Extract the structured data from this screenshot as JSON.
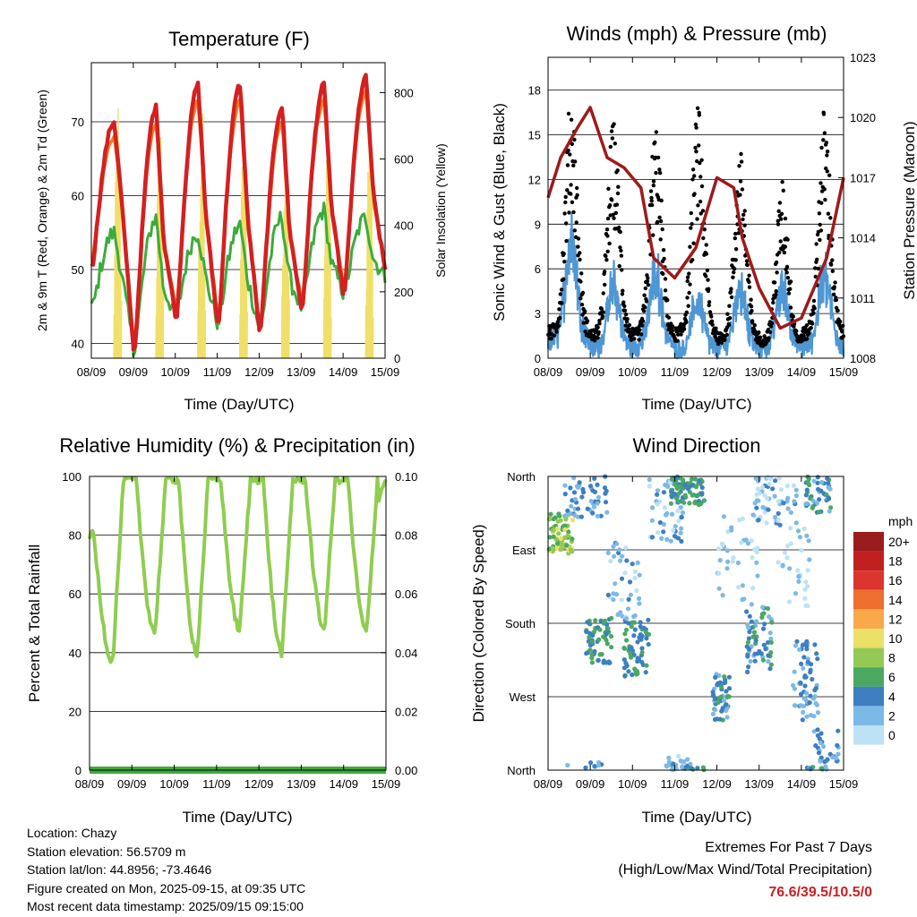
{
  "chart_data": [
    {
      "type": "line",
      "title": "Temperature (F)",
      "xlabel": "Time (Day/UTC)",
      "ylabel": "2m & 9m T (Red, Orange) & 2m Td (Green)",
      "ylabel_right": "Solar Insolation (Yellow)",
      "x_ticks": [
        "08/09",
        "09/09",
        "10/09",
        "11/09",
        "12/09",
        "13/09",
        "14/09",
        "15/09"
      ],
      "y_ticks": [
        40,
        50,
        60,
        70
      ],
      "ylim": [
        38,
        78
      ],
      "y_right_ticks": [
        0,
        200,
        400,
        600,
        800
      ],
      "y_right_lim": [
        0,
        890
      ],
      "grid": true,
      "series": [
        {
          "name": "2m T",
          "color": "#d42020",
          "daily_max": [
            70,
            72,
            75,
            75,
            72,
            75,
            76
          ],
          "daily_min": [
            51,
            39.5,
            44,
            43,
            42,
            45,
            47
          ],
          "end": 50
        },
        {
          "name": "9m T",
          "color": "#f07a20",
          "daily_max": [
            68,
            70,
            73,
            73,
            70,
            73,
            74
          ],
          "daily_min": [
            52,
            40.5,
            45,
            44,
            43,
            46,
            48
          ],
          "end": 50
        },
        {
          "name": "2m Td",
          "color": "#3cab3c",
          "daily_max": [
            55,
            57,
            55,
            56,
            57,
            58,
            57
          ],
          "daily_min": [
            45,
            39.5,
            44,
            43,
            42,
            45,
            47
          ],
          "end": 49
        },
        {
          "name": "Solar Insolation",
          "color": "#f0df6a",
          "daily_max": [
            800,
            810,
            800,
            810,
            810,
            800,
            810
          ]
        }
      ]
    },
    {
      "type": "scatter",
      "title": "Winds (mph) & Pressure (mb)",
      "xlabel": "Time (Day/UTC)",
      "ylabel": "Sonic Wind & Gust (Blue, Black)",
      "ylabel_right": "Station Pressure (Maroon)",
      "x_ticks": [
        "08/09",
        "09/09",
        "10/09",
        "11/09",
        "12/09",
        "13/09",
        "14/09",
        "15/09"
      ],
      "y_ticks": [
        0,
        3,
        6,
        9,
        12,
        15,
        18
      ],
      "ylim": [
        0,
        20.2
      ],
      "y_right_ticks": [
        1008,
        1011,
        1014,
        1017,
        1020,
        1023
      ],
      "y_right_lim": [
        1008,
        1023
      ],
      "grid": true,
      "series": [
        {
          "name": "Sonic Wind",
          "color": "#4f97d4",
          "daily_max": [
            10,
            6,
            7,
            5,
            6,
            6,
            7
          ]
        },
        {
          "name": "Gust",
          "color": "#000000",
          "daily_max": [
            18,
            16,
            16,
            17,
            14,
            12,
            17
          ]
        },
        {
          "name": "Station Pressure",
          "color": "#9e1a1a",
          "x": [
            0,
            0.3,
            0.7,
            1,
            1.4,
            1.8,
            2.2,
            2.5,
            3,
            3.5,
            4,
            4.4,
            4.6,
            5,
            5.5,
            6,
            6.3,
            6.6,
            7
          ],
          "values": [
            1016,
            1018,
            1019.5,
            1020.5,
            1018,
            1017.5,
            1016.5,
            1013,
            1012,
            1013.5,
            1017,
            1016.5,
            1014,
            1011.5,
            1009.5,
            1010,
            1011.5,
            1013,
            1017
          ]
        }
      ]
    },
    {
      "type": "line",
      "title": "Relative Humidity (%) & Precipitation (in)",
      "xlabel": "Time (Day/UTC)",
      "ylabel": "Percent & Total Rainfall",
      "x_ticks": [
        "08/09",
        "09/09",
        "10/09",
        "11/09",
        "12/09",
        "13/09",
        "14/09",
        "15/09"
      ],
      "y_ticks": [
        0,
        20,
        40,
        60,
        80,
        100
      ],
      "ylim": [
        0,
        100
      ],
      "y_right_ticks": [
        "0.00",
        "0.02",
        "0.04",
        "0.06",
        "0.08",
        "0.10"
      ],
      "y_right_lim": [
        0,
        0.1
      ],
      "grid": true,
      "series": [
        {
          "name": "Relative Humidity",
          "color": "#8fcd4f",
          "daily_min": [
            37,
            47,
            40,
            48,
            40,
            48,
            47
          ],
          "start": 80,
          "end": 99
        },
        {
          "name": "Total Precipitation",
          "color": "#3cab3c",
          "values": [
            0,
            0
          ]
        }
      ]
    },
    {
      "type": "scatter",
      "title": "Wind Direction",
      "xlabel": "Time (Day/UTC)",
      "ylabel": "Direction (Colored By Speed)",
      "x_ticks": [
        "08/09",
        "09/09",
        "10/09",
        "11/09",
        "12/09",
        "13/09",
        "14/09",
        "15/09"
      ],
      "y_ticks": [
        "North",
        "East",
        "South",
        "West",
        "North"
      ],
      "ylim": [
        0,
        360
      ],
      "grid": true,
      "legend_title": "mph",
      "legend_labels": [
        "20+",
        "18",
        "16",
        "14",
        "12",
        "10",
        "8",
        "6",
        "4",
        "2",
        "0"
      ],
      "legend_colors": [
        "#9b1c1c",
        "#c02020",
        "#dc3530",
        "#ee6e2e",
        "#f7a94c",
        "#ebe068",
        "#93c954",
        "#4aa860",
        "#3d7fc0",
        "#7db9e6",
        "#bde2f5"
      ]
    }
  ],
  "footer": {
    "location": "Location: Chazy",
    "elevation": "Station elevation: 56.5709 m",
    "latlon": "Station lat/lon: 44.8956; -73.4646",
    "created": "Figure created on Mon, 2025-09-15, at 09:35 UTC",
    "recent": "Most recent data timestamp: 2025/09/15 09:15:00"
  },
  "extremes": {
    "title": "Extremes For Past 7 Days",
    "subtitle": "(High/Low/Max Wind/Total Precipitation)",
    "values": "76.6/39.5/10.5/0"
  }
}
